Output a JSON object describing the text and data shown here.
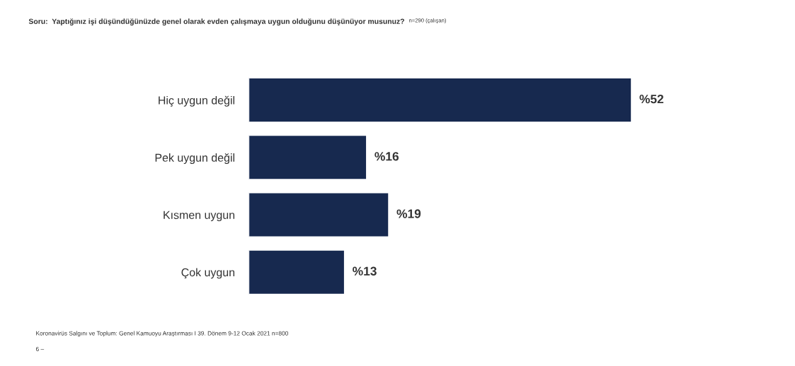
{
  "chart_data": {
    "type": "bar",
    "orientation": "horizontal",
    "title": "Soru:  Yaptığınız işi düşündüğünüzde genel olarak evden çalışmaya uygun olduğunu düşünüyor musunuz?",
    "subtitle": "n=290 (çalışan)",
    "categories": [
      "Hiç uygun değil",
      "Pek uygun değil",
      "Kısmen uygun",
      "Çok uygun"
    ],
    "values": [
      52,
      16,
      19,
      13
    ],
    "value_labels": [
      "%52",
      "%16",
      "%19",
      "%13"
    ],
    "color": "#17294f",
    "tick_labels": "y",
    "annotations": [
      "Koronavirüs Salgını ve Toplum: Genel Kamuoyu Araştırması I 39. Dönem 9-12 Ocak 2021 n=800",
      "6 –"
    ]
  }
}
